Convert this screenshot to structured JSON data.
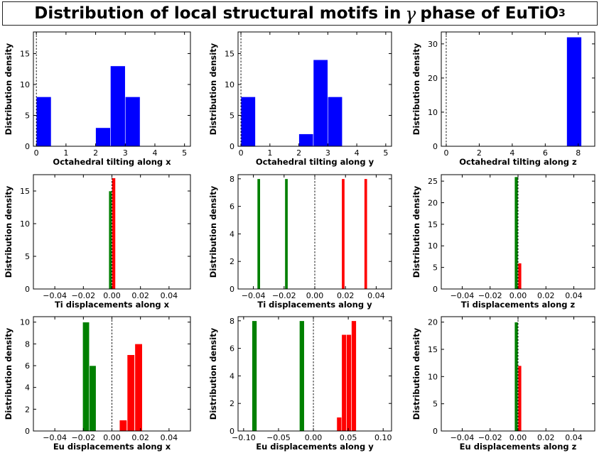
{
  "title": {
    "prefix": "Distribution of local structural motifs in",
    "symbol": "γ",
    "suffix": "phase of EuTiO",
    "subscript": "3"
  },
  "chart_data": [
    {
      "type": "bar",
      "xlabel": "Octahedral tilting along x",
      "ylabel": "Distribution density",
      "xlim": [
        -0.1,
        5.2
      ],
      "ylim": [
        0,
        18.5
      ],
      "xticks": [
        0,
        1,
        2,
        3,
        4,
        5
      ],
      "xtick_labels": [
        "0",
        "1",
        "2",
        "3",
        "4",
        "5"
      ],
      "yticks": [
        0,
        5,
        10,
        15
      ],
      "ytick_labels": [
        "0",
        "5",
        "10",
        "15"
      ],
      "zero_line": 0,
      "series": [
        {
          "color": "#0000ff",
          "bars": [
            [
              0,
              0.5,
              8
            ],
            [
              2,
              2.5,
              3
            ],
            [
              2.5,
              3.0,
              13
            ],
            [
              3.0,
              3.5,
              8
            ]
          ]
        }
      ]
    },
    {
      "type": "bar",
      "xlabel": "Octahedral tilting along y",
      "ylabel": "Distribution density",
      "xlim": [
        -0.1,
        5.2
      ],
      "ylim": [
        0,
        18.5
      ],
      "xticks": [
        0,
        1,
        2,
        3,
        4,
        5
      ],
      "xtick_labels": [
        "0",
        "1",
        "2",
        "3",
        "4",
        "5"
      ],
      "yticks": [
        0,
        5,
        10,
        15
      ],
      "ytick_labels": [
        "0",
        "5",
        "10",
        "15"
      ],
      "zero_line": 0,
      "series": [
        {
          "color": "#0000ff",
          "bars": [
            [
              0,
              0.5,
              8
            ],
            [
              2,
              2.5,
              2
            ],
            [
              2.5,
              3.0,
              14
            ],
            [
              3.0,
              3.5,
              8
            ]
          ]
        }
      ]
    },
    {
      "type": "bar",
      "xlabel": "Octahedral tilting along z",
      "ylabel": "Distribution density",
      "xlim": [
        -0.3,
        9.0
      ],
      "ylim": [
        0,
        33.5
      ],
      "xticks": [
        0,
        2,
        4,
        6,
        8
      ],
      "xtick_labels": [
        "0",
        "2",
        "4",
        "6",
        "8"
      ],
      "yticks": [
        0,
        10,
        20,
        30
      ],
      "ytick_labels": [
        "0",
        "10",
        "20",
        "30"
      ],
      "zero_line": 0,
      "series": [
        {
          "color": "#0000ff",
          "bars": [
            [
              7.3,
              8.2,
              32
            ]
          ]
        }
      ]
    },
    {
      "type": "bar",
      "xlabel": "Ti displacements along x",
      "ylabel": "Distribution density",
      "xlim": [
        -0.055,
        0.055
      ],
      "ylim": [
        0,
        17.5
      ],
      "xticks": [
        -0.04,
        -0.02,
        0,
        0.02,
        0.04
      ],
      "xtick_labels": [
        "−0.04",
        "−0.02",
        "0.00",
        "0.02",
        "0.04"
      ],
      "yticks": [
        0,
        5,
        10,
        15
      ],
      "ytick_labels": [
        "0",
        "5",
        "10",
        "15"
      ],
      "zero_line": 0,
      "series": [
        {
          "color": "#008000",
          "bars": [
            [
              -0.0022,
              0.0,
              15
            ]
          ]
        },
        {
          "color": "#ff0000",
          "bars": [
            [
              0.0,
              0.0025,
              17
            ]
          ]
        }
      ]
    },
    {
      "type": "bar",
      "xlabel": "Ti displacements along y",
      "ylabel": "Distribution density",
      "xlim": [
        -0.05,
        0.05
      ],
      "ylim": [
        0,
        8.3
      ],
      "xticks": [
        -0.04,
        -0.02,
        0,
        0.02,
        0.04
      ],
      "xtick_labels": [
        "−0.04",
        "−0.02",
        "0.00",
        "0.02",
        "0.04"
      ],
      "yticks": [
        0,
        2,
        4,
        6,
        8
      ],
      "ytick_labels": [
        "0",
        "2",
        "4",
        "6",
        "8"
      ],
      "zero_line": 0,
      "series": [
        {
          "color": "#008000",
          "bars": [
            [
              -0.0375,
              -0.0355,
              8
            ],
            [
              -0.0195,
              -0.0175,
              8
            ]
          ]
        },
        {
          "color": "#ff0000",
          "bars": [
            [
              0.0175,
              0.0195,
              8
            ],
            [
              0.0322,
              0.0342,
              8
            ]
          ]
        }
      ]
    },
    {
      "type": "bar",
      "xlabel": "Ti displacements along z",
      "ylabel": "Distribution density",
      "xlim": [
        -0.055,
        0.055
      ],
      "ylim": [
        0,
        26.5
      ],
      "xticks": [
        -0.04,
        -0.02,
        0,
        0.02,
        0.04
      ],
      "xtick_labels": [
        "−0.04",
        "−0.02",
        "0.00",
        "0.02",
        "0.04"
      ],
      "yticks": [
        0,
        5,
        10,
        15,
        20,
        25
      ],
      "ytick_labels": [
        "0",
        "5",
        "10",
        "15",
        "20",
        "25"
      ],
      "zero_line": 0,
      "series": [
        {
          "color": "#008000",
          "bars": [
            [
              -0.0025,
              0.0,
              26
            ]
          ]
        },
        {
          "color": "#ff0000",
          "bars": [
            [
              0.0,
              0.0025,
              6
            ]
          ]
        }
      ]
    },
    {
      "type": "bar",
      "xlabel": "Eu displacements along x",
      "ylabel": "Distribution density",
      "xlim": [
        -0.055,
        0.055
      ],
      "ylim": [
        0,
        10.5
      ],
      "xticks": [
        -0.04,
        -0.02,
        0,
        0.02,
        0.04
      ],
      "xtick_labels": [
        "−0.04",
        "−0.02",
        "0.00",
        "0.02",
        "0.04"
      ],
      "yticks": [
        0,
        2,
        4,
        6,
        8,
        10
      ],
      "ytick_labels": [
        "0",
        "2",
        "4",
        "6",
        "8",
        "10"
      ],
      "zero_line": 0,
      "series": [
        {
          "color": "#008000",
          "bars": [
            [
              -0.0205,
              -0.0158,
              10
            ],
            [
              -0.0158,
              -0.0111,
              6
            ]
          ]
        },
        {
          "color": "#ff0000",
          "bars": [
            [
              0.0053,
              0.0105,
              1
            ],
            [
              0.0107,
              0.0159,
              7
            ],
            [
              0.0161,
              0.0213,
              8
            ]
          ]
        }
      ]
    },
    {
      "type": "bar",
      "xlabel": "Eu displacements along y",
      "ylabel": "Distribution density",
      "xlim": [
        -0.108,
        0.112
      ],
      "ylim": [
        0,
        8.3
      ],
      "xticks": [
        -0.1,
        -0.05,
        0,
        0.05,
        0.1
      ],
      "xtick_labels": [
        "−0.10",
        "−0.05",
        "0.00",
        "0.05",
        "0.10"
      ],
      "yticks": [
        0,
        2,
        4,
        6,
        8
      ],
      "ytick_labels": [
        "0",
        "2",
        "4",
        "6",
        "8"
      ],
      "zero_line": 0,
      "series": [
        {
          "color": "#008000",
          "bars": [
            [
              -0.088,
              -0.081,
              8
            ],
            [
              -0.02,
              -0.013,
              8
            ]
          ]
        },
        {
          "color": "#ff0000",
          "bars": [
            [
              0.0335,
              0.0405,
              1
            ],
            [
              0.0405,
              0.0475,
              7
            ],
            [
              0.0475,
              0.0545,
              7
            ],
            [
              0.0545,
              0.0615,
              8
            ]
          ]
        }
      ]
    },
    {
      "type": "bar",
      "xlabel": "Eu displacements along z",
      "ylabel": "Distribution density",
      "xlim": [
        -0.055,
        0.055
      ],
      "ylim": [
        0,
        21
      ],
      "xticks": [
        -0.04,
        -0.02,
        0,
        0.02,
        0.04
      ],
      "xtick_labels": [
        "−0.04",
        "−0.02",
        "0.00",
        "0.02",
        "0.04"
      ],
      "yticks": [
        0,
        5,
        10,
        15,
        20
      ],
      "ytick_labels": [
        "0",
        "5",
        "10",
        "15",
        "20"
      ],
      "zero_line": 0,
      "series": [
        {
          "color": "#008000",
          "bars": [
            [
              -0.0025,
              0.0,
              20
            ]
          ]
        },
        {
          "color": "#ff0000",
          "bars": [
            [
              0.0,
              0.0025,
              12
            ]
          ]
        }
      ]
    }
  ]
}
